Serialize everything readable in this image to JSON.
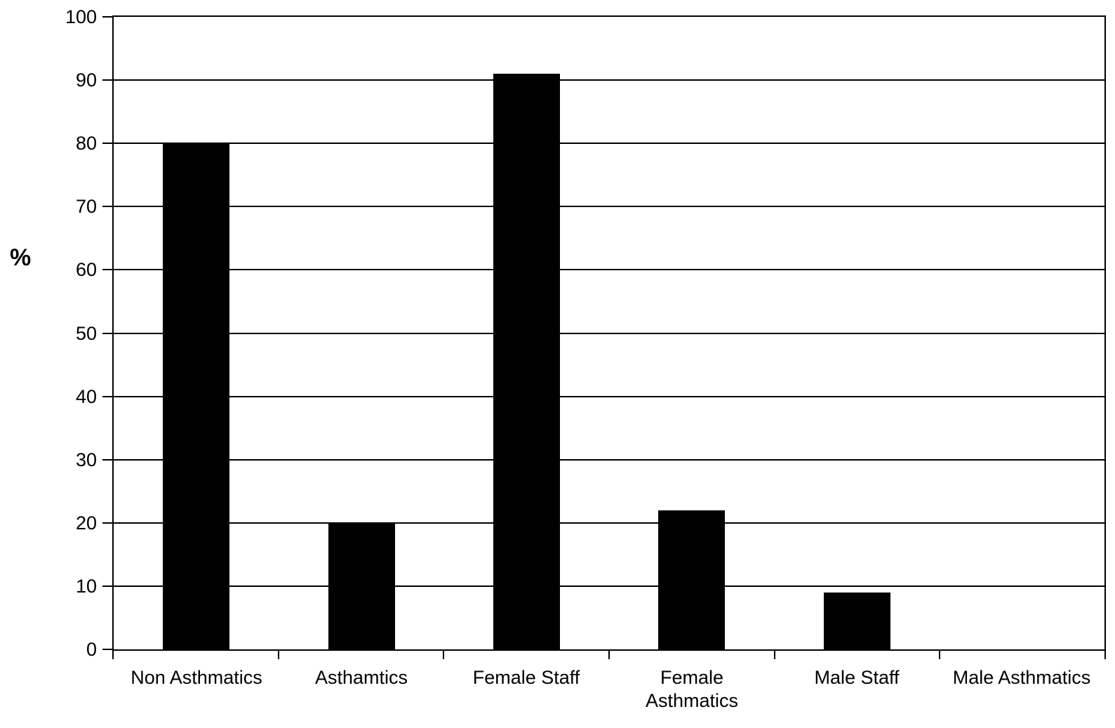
{
  "chart_data": {
    "type": "bar",
    "title": "",
    "xlabel": "",
    "ylabel": "%",
    "categories": [
      "Non Asthmatics",
      "Asthamtics",
      "Female Staff",
      "Female\nAsthmatics",
      "Male Staff",
      "Male Asthmatics"
    ],
    "values": [
      80,
      20,
      91,
      22,
      9,
      0
    ],
    "ylim": [
      0,
      100
    ],
    "yticks": [
      0,
      10,
      20,
      30,
      40,
      50,
      60,
      70,
      80,
      90,
      100
    ],
    "grid": true,
    "legend": false,
    "bar_color": "#000000",
    "axis_color": "#000000",
    "gridline_color": "#000000",
    "background_color": "#ffffff"
  }
}
